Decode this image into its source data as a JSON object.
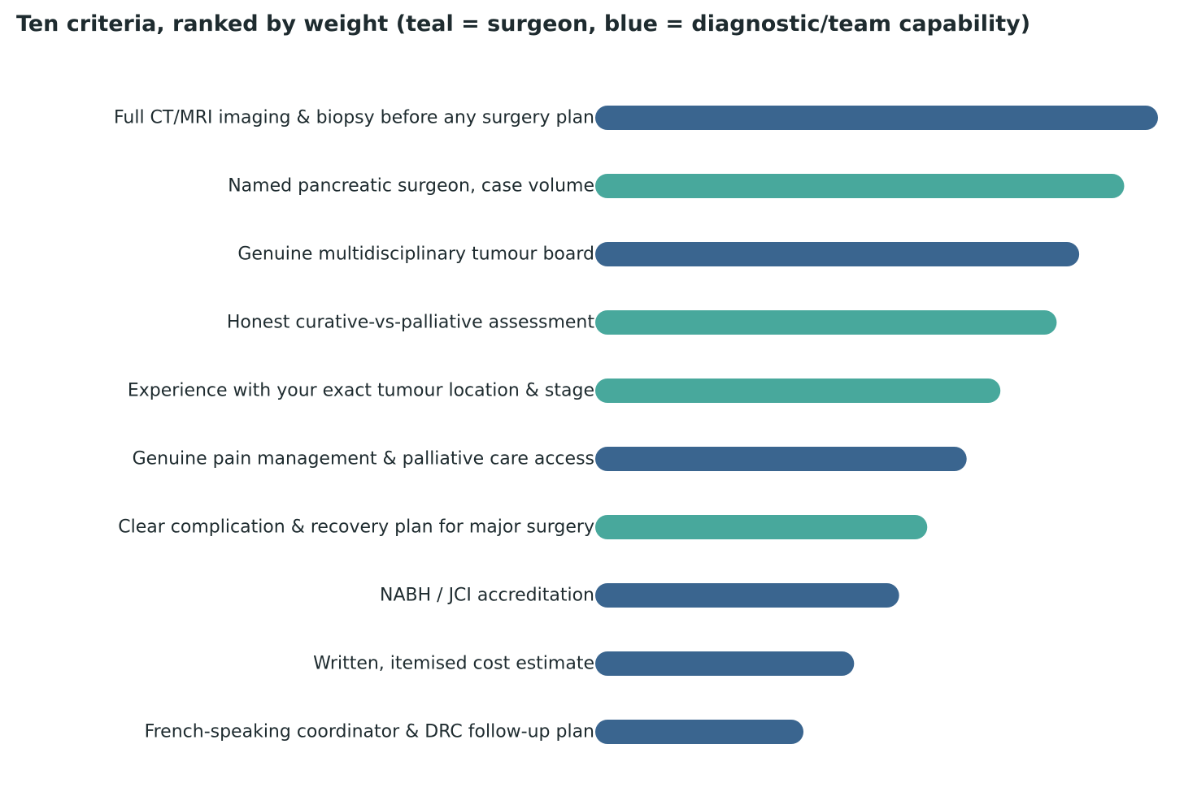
{
  "chart_data": {
    "type": "bar",
    "orientation": "horizontal",
    "title": "Ten criteria, ranked by weight (teal = surgeon, blue = diagnostic/team capability)",
    "xlabel": "",
    "ylabel": "",
    "grid": false,
    "xlim": [
      0,
      100
    ],
    "colors": {
      "surgeon": "#48a89c",
      "capability": "#3a658f"
    },
    "categories": [
      "Full CT/MRI imaging & biopsy before any surgery plan",
      "Named pancreatic surgeon, case volume",
      "Genuine multidisciplinary tumour board",
      "Honest curative-vs-palliative assessment",
      "Experience with your exact tumour location & stage",
      "Genuine pain management & palliative care access",
      "Clear complication & recovery plan for major surgery",
      "NABH / JCI accreditation",
      "Written, itemised cost estimate",
      "French-speaking coordinator & DRC follow-up plan"
    ],
    "values": [
      100,
      94,
      86,
      82,
      72,
      66,
      59,
      54,
      46,
      37
    ],
    "groups": [
      "capability",
      "surgeon",
      "capability",
      "surgeon",
      "surgeon",
      "capability",
      "surgeon",
      "capability",
      "capability",
      "capability"
    ]
  }
}
